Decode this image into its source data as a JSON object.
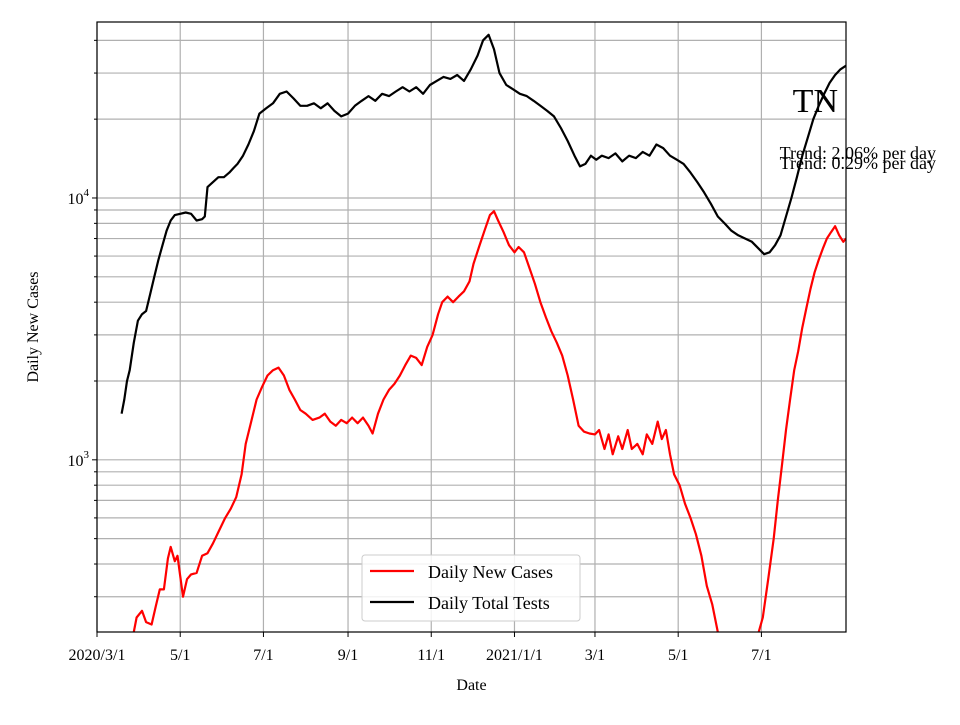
{
  "chart_data": {
    "type": "line",
    "state_label": "TN",
    "xlabel": "Date",
    "ylabel": "Daily New Cases",
    "y_scale": "log",
    "ylim": [
      220,
      47000
    ],
    "xlim": [
      "2020-03-01",
      "2021-09-01"
    ],
    "grid": true,
    "legend_position": "bottom-center",
    "x_tick_labels": [
      {
        "date": "2020-03-01",
        "label": "2020/3/1"
      },
      {
        "date": "2020-05-01",
        "label": "5/1"
      },
      {
        "date": "2020-07-01",
        "label": "7/1"
      },
      {
        "date": "2020-09-01",
        "label": "9/1"
      },
      {
        "date": "2020-11-01",
        "label": "11/1"
      },
      {
        "date": "2021-01-01",
        "label": "2021/1/1"
      },
      {
        "date": "2021-03-01",
        "label": "3/1"
      },
      {
        "date": "2021-05-01",
        "label": "5/1"
      },
      {
        "date": "2021-07-01",
        "label": "7/1"
      }
    ],
    "y_tick_labels": [
      {
        "value": 1000,
        "base": "10",
        "exp": "3"
      },
      {
        "value": 10000,
        "base": "10",
        "exp": "4"
      }
    ],
    "annotations": [
      "Trend: 2.06% per day",
      "Trend: 0.29% per day"
    ],
    "series": [
      {
        "name": "Daily New Cases",
        "color": "#ff0000",
        "points": [
          [
            "2020-03-28",
            220
          ],
          [
            "2020-03-30",
            250
          ],
          [
            "2020-04-03",
            265
          ],
          [
            "2020-04-06",
            240
          ],
          [
            "2020-04-10",
            235
          ],
          [
            "2020-04-13",
            275
          ],
          [
            "2020-04-16",
            320
          ],
          [
            "2020-04-19",
            320
          ],
          [
            "2020-04-22",
            420
          ],
          [
            "2020-04-24",
            465
          ],
          [
            "2020-04-27",
            410
          ],
          [
            "2020-04-29",
            430
          ],
          [
            "2020-05-01",
            360
          ],
          [
            "2020-05-03",
            300
          ],
          [
            "2020-05-06",
            350
          ],
          [
            "2020-05-09",
            365
          ],
          [
            "2020-05-13",
            370
          ],
          [
            "2020-05-17",
            430
          ],
          [
            "2020-05-21",
            440
          ],
          [
            "2020-05-25",
            480
          ],
          [
            "2020-05-29",
            530
          ],
          [
            "2020-06-03",
            600
          ],
          [
            "2020-06-07",
            650
          ],
          [
            "2020-06-11",
            720
          ],
          [
            "2020-06-15",
            880
          ],
          [
            "2020-06-18",
            1150
          ],
          [
            "2020-06-22",
            1400
          ],
          [
            "2020-06-26",
            1700
          ],
          [
            "2020-06-30",
            1900
          ],
          [
            "2020-07-04",
            2100
          ],
          [
            "2020-07-08",
            2200
          ],
          [
            "2020-07-12",
            2250
          ],
          [
            "2020-07-16",
            2100
          ],
          [
            "2020-07-20",
            1850
          ],
          [
            "2020-07-24",
            1700
          ],
          [
            "2020-07-28",
            1550
          ],
          [
            "2020-08-01",
            1500
          ],
          [
            "2020-08-06",
            1420
          ],
          [
            "2020-08-11",
            1450
          ],
          [
            "2020-08-15",
            1500
          ],
          [
            "2020-08-19",
            1400
          ],
          [
            "2020-08-23",
            1350
          ],
          [
            "2020-08-27",
            1420
          ],
          [
            "2020-08-31",
            1380
          ],
          [
            "2020-09-04",
            1450
          ],
          [
            "2020-09-08",
            1380
          ],
          [
            "2020-09-12",
            1450
          ],
          [
            "2020-09-16",
            1350
          ],
          [
            "2020-09-19",
            1260
          ],
          [
            "2020-09-23",
            1500
          ],
          [
            "2020-09-27",
            1700
          ],
          [
            "2020-10-01",
            1850
          ],
          [
            "2020-10-05",
            1950
          ],
          [
            "2020-10-09",
            2100
          ],
          [
            "2020-10-13",
            2300
          ],
          [
            "2020-10-17",
            2500
          ],
          [
            "2020-10-21",
            2450
          ],
          [
            "2020-10-25",
            2300
          ],
          [
            "2020-10-29",
            2700
          ],
          [
            "2020-11-02",
            3000
          ],
          [
            "2020-11-06",
            3600
          ],
          [
            "2020-11-09",
            4000
          ],
          [
            "2020-11-13",
            4200
          ],
          [
            "2020-11-17",
            4000
          ],
          [
            "2020-11-21",
            4200
          ],
          [
            "2020-11-25",
            4400
          ],
          [
            "2020-11-29",
            4800
          ],
          [
            "2020-12-02",
            5600
          ],
          [
            "2020-12-06",
            6500
          ],
          [
            "2020-12-10",
            7500
          ],
          [
            "2020-12-14",
            8600
          ],
          [
            "2020-12-17",
            8900
          ],
          [
            "2020-12-20",
            8200
          ],
          [
            "2020-12-24",
            7400
          ],
          [
            "2020-12-28",
            6600
          ],
          [
            "2021-01-01",
            6200
          ],
          [
            "2021-01-04",
            6500
          ],
          [
            "2021-01-08",
            6200
          ],
          [
            "2021-01-12",
            5400
          ],
          [
            "2021-01-16",
            4700
          ],
          [
            "2021-01-20",
            4000
          ],
          [
            "2021-01-24",
            3500
          ],
          [
            "2021-01-28",
            3100
          ],
          [
            "2021-02-01",
            2800
          ],
          [
            "2021-02-05",
            2500
          ],
          [
            "2021-02-09",
            2100
          ],
          [
            "2021-02-13",
            1700
          ],
          [
            "2021-02-17",
            1350
          ],
          [
            "2021-02-21",
            1280
          ],
          [
            "2021-02-25",
            1260
          ],
          [
            "2021-03-01",
            1250
          ],
          [
            "2021-03-04",
            1300
          ],
          [
            "2021-03-08",
            1100
          ],
          [
            "2021-03-11",
            1250
          ],
          [
            "2021-03-14",
            1050
          ],
          [
            "2021-03-18",
            1230
          ],
          [
            "2021-03-21",
            1100
          ],
          [
            "2021-03-25",
            1300
          ],
          [
            "2021-03-28",
            1100
          ],
          [
            "2021-04-01",
            1150
          ],
          [
            "2021-04-05",
            1050
          ],
          [
            "2021-04-08",
            1250
          ],
          [
            "2021-04-12",
            1150
          ],
          [
            "2021-04-16",
            1400
          ],
          [
            "2021-04-19",
            1200
          ],
          [
            "2021-04-22",
            1300
          ],
          [
            "2021-04-25",
            1050
          ],
          [
            "2021-04-28",
            880
          ],
          [
            "2021-05-02",
            800
          ],
          [
            "2021-05-06",
            680
          ],
          [
            "2021-05-10",
            600
          ],
          [
            "2021-05-14",
            520
          ],
          [
            "2021-05-18",
            430
          ],
          [
            "2021-05-22",
            330
          ],
          [
            "2021-05-26",
            280
          ],
          [
            "2021-05-30",
            220
          ],
          [
            "2021-06-29",
            220
          ],
          [
            "2021-07-02",
            250
          ],
          [
            "2021-07-06",
            350
          ],
          [
            "2021-07-10",
            500
          ],
          [
            "2021-07-13",
            700
          ],
          [
            "2021-07-16",
            950
          ],
          [
            "2021-07-19",
            1300
          ],
          [
            "2021-07-22",
            1700
          ],
          [
            "2021-07-25",
            2200
          ],
          [
            "2021-07-28",
            2600
          ],
          [
            "2021-07-31",
            3200
          ],
          [
            "2021-08-03",
            3800
          ],
          [
            "2021-08-06",
            4500
          ],
          [
            "2021-08-09",
            5200
          ],
          [
            "2021-08-12",
            5800
          ],
          [
            "2021-08-15",
            6400
          ],
          [
            "2021-08-18",
            7000
          ],
          [
            "2021-08-21",
            7400
          ],
          [
            "2021-08-24",
            7800
          ],
          [
            "2021-08-27",
            7200
          ],
          [
            "2021-08-30",
            6800
          ],
          [
            "2021-09-01",
            7000
          ]
        ]
      },
      {
        "name": "Daily Total Tests",
        "color": "#000000",
        "points": [
          [
            "2020-03-19",
            1500
          ],
          [
            "2020-03-21",
            1700
          ],
          [
            "2020-03-23",
            2000
          ],
          [
            "2020-03-25",
            2200
          ],
          [
            "2020-03-28",
            2800
          ],
          [
            "2020-03-31",
            3400
          ],
          [
            "2020-04-03",
            3600
          ],
          [
            "2020-04-06",
            3700
          ],
          [
            "2020-04-09",
            4300
          ],
          [
            "2020-04-12",
            5000
          ],
          [
            "2020-04-15",
            5800
          ],
          [
            "2020-04-18",
            6600
          ],
          [
            "2020-04-21",
            7500
          ],
          [
            "2020-04-24",
            8200
          ],
          [
            "2020-04-27",
            8600
          ],
          [
            "2020-05-01",
            8700
          ],
          [
            "2020-05-05",
            8800
          ],
          [
            "2020-05-09",
            8700
          ],
          [
            "2020-05-13",
            8200
          ],
          [
            "2020-05-17",
            8300
          ],
          [
            "2020-05-19",
            8500
          ],
          [
            "2020-05-21",
            11000
          ],
          [
            "2020-05-25",
            11500
          ],
          [
            "2020-05-29",
            12000
          ],
          [
            "2020-06-02",
            12000
          ],
          [
            "2020-06-06",
            12500
          ],
          [
            "2020-06-09",
            13000
          ],
          [
            "2020-06-12",
            13500
          ],
          [
            "2020-06-16",
            14500
          ],
          [
            "2020-06-20",
            16000
          ],
          [
            "2020-06-24",
            18000
          ],
          [
            "2020-06-28",
            21000
          ],
          [
            "2020-07-03",
            22000
          ],
          [
            "2020-07-08",
            23000
          ],
          [
            "2020-07-13",
            25000
          ],
          [
            "2020-07-18",
            25500
          ],
          [
            "2020-07-23",
            24000
          ],
          [
            "2020-07-28",
            22500
          ],
          [
            "2020-08-02",
            22500
          ],
          [
            "2020-08-07",
            23000
          ],
          [
            "2020-08-12",
            22000
          ],
          [
            "2020-08-17",
            23000
          ],
          [
            "2020-08-22",
            21500
          ],
          [
            "2020-08-27",
            20500
          ],
          [
            "2020-09-01",
            21000
          ],
          [
            "2020-09-06",
            22500
          ],
          [
            "2020-09-11",
            23500
          ],
          [
            "2020-09-16",
            24500
          ],
          [
            "2020-09-21",
            23500
          ],
          [
            "2020-09-26",
            25000
          ],
          [
            "2020-10-01",
            24500
          ],
          [
            "2020-10-06",
            25500
          ],
          [
            "2020-10-11",
            26500
          ],
          [
            "2020-10-16",
            25500
          ],
          [
            "2020-10-21",
            26500
          ],
          [
            "2020-10-26",
            25000
          ],
          [
            "2020-10-31",
            27000
          ],
          [
            "2020-11-05",
            28000
          ],
          [
            "2020-11-10",
            29000
          ],
          [
            "2020-11-15",
            28500
          ],
          [
            "2020-11-20",
            29500
          ],
          [
            "2020-11-25",
            28000
          ],
          [
            "2020-11-30",
            31000
          ],
          [
            "2020-12-05",
            35000
          ],
          [
            "2020-12-09",
            40000
          ],
          [
            "2020-12-13",
            42000
          ],
          [
            "2020-12-17",
            37000
          ],
          [
            "2020-12-21",
            30000
          ],
          [
            "2020-12-26",
            27000
          ],
          [
            "2020-12-31",
            26000
          ],
          [
            "2021-01-05",
            25000
          ],
          [
            "2021-01-10",
            24500
          ],
          [
            "2021-01-15",
            23500
          ],
          [
            "2021-01-20",
            22500
          ],
          [
            "2021-01-25",
            21500
          ],
          [
            "2021-01-30",
            20500
          ],
          [
            "2021-02-04",
            18500
          ],
          [
            "2021-02-09",
            16500
          ],
          [
            "2021-02-14",
            14500
          ],
          [
            "2021-02-18",
            13200
          ],
          [
            "2021-02-22",
            13500
          ],
          [
            "2021-02-26",
            14500
          ],
          [
            "2021-03-02",
            14000
          ],
          [
            "2021-03-06",
            14500
          ],
          [
            "2021-03-11",
            14200
          ],
          [
            "2021-03-16",
            14800
          ],
          [
            "2021-03-21",
            13800
          ],
          [
            "2021-03-26",
            14500
          ],
          [
            "2021-03-31",
            14200
          ],
          [
            "2021-04-05",
            15000
          ],
          [
            "2021-04-10",
            14500
          ],
          [
            "2021-04-15",
            16000
          ],
          [
            "2021-04-20",
            15500
          ],
          [
            "2021-04-25",
            14500
          ],
          [
            "2021-04-30",
            14000
          ],
          [
            "2021-05-05",
            13500
          ],
          [
            "2021-05-10",
            12500
          ],
          [
            "2021-05-15",
            11500
          ],
          [
            "2021-05-20",
            10500
          ],
          [
            "2021-05-25",
            9500
          ],
          [
            "2021-05-30",
            8500
          ],
          [
            "2021-06-04",
            8000
          ],
          [
            "2021-06-09",
            7500
          ],
          [
            "2021-06-14",
            7200
          ],
          [
            "2021-06-19",
            7000
          ],
          [
            "2021-06-24",
            6800
          ],
          [
            "2021-06-29",
            6400
          ],
          [
            "2021-07-03",
            6100
          ],
          [
            "2021-07-07",
            6200
          ],
          [
            "2021-07-11",
            6600
          ],
          [
            "2021-07-15",
            7200
          ],
          [
            "2021-07-19",
            8500
          ],
          [
            "2021-07-23",
            10000
          ],
          [
            "2021-07-27",
            12000
          ],
          [
            "2021-07-31",
            14500
          ],
          [
            "2021-08-04",
            17000
          ],
          [
            "2021-08-08",
            20000
          ],
          [
            "2021-08-12",
            22500
          ],
          [
            "2021-08-16",
            25000
          ],
          [
            "2021-08-20",
            27500
          ],
          [
            "2021-08-24",
            29500
          ],
          [
            "2021-08-28",
            31000
          ],
          [
            "2021-09-01",
            32000
          ]
        ]
      }
    ]
  }
}
